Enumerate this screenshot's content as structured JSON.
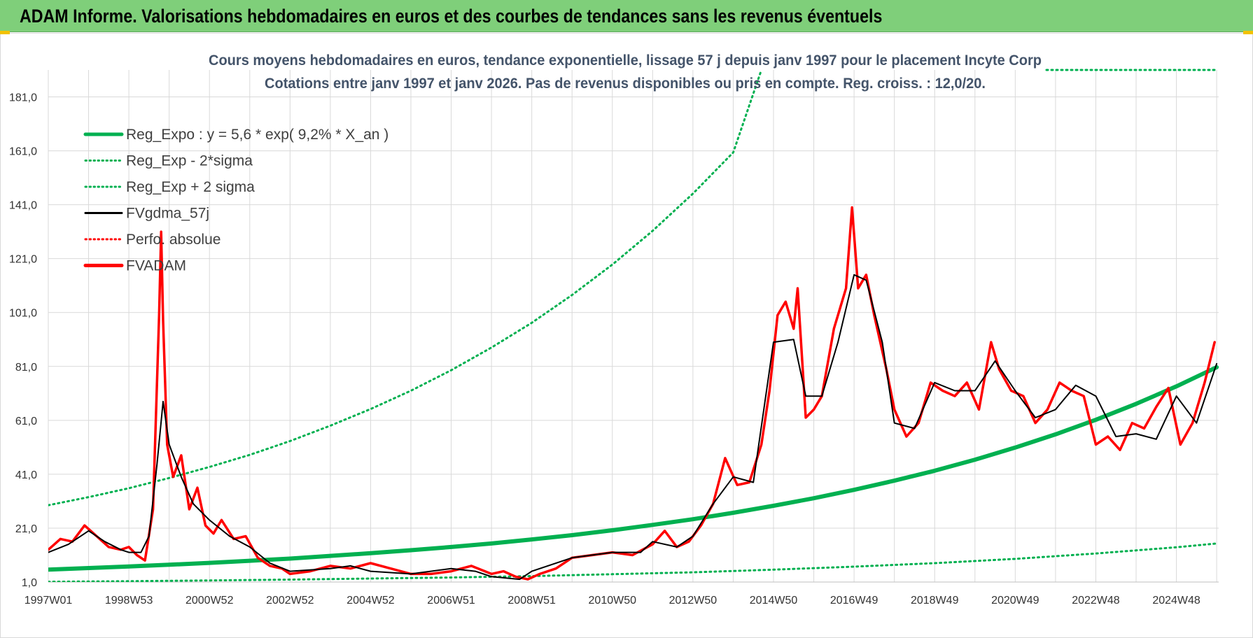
{
  "banner": {
    "title": "ADAM Informe. Valorisations hebdomadaires en euros et des courbes de tendances sans les revenus éventuels"
  },
  "colors": {
    "banner_bg": "#7fcf7a",
    "reg_expo": "#00b050",
    "sigma_lines": "#00b050",
    "fvgdma": "#000000",
    "fvadam": "#ff0000",
    "perfo": "#ff0000",
    "grid": "#d9d9d9"
  },
  "chart_data": {
    "type": "line",
    "title": "Cours moyens hebdomadaires en euros, tendance exponentielle, lissage 57 j depuis janv 1997 pour le placement Incyte Corp",
    "subtitle": "Cotations entre janv 1997 et janv 2026. Pas de revenus disponibles ou pris en compte. Reg. croiss. : 12,0/20.",
    "xlabel": "",
    "ylabel": "",
    "ylim": [
      1,
      191
    ],
    "xlim": [
      1997.0,
      2026.05
    ],
    "y_ticks": [
      "1,0",
      "21,0",
      "41,0",
      "61,0",
      "81,0",
      "101,0",
      "121,0",
      "141,0",
      "161,0",
      "181,0"
    ],
    "x_ticks": [
      {
        "label": "1997W01",
        "x": 1997.0
      },
      {
        "label": "1998W53",
        "x": 1999.0
      },
      {
        "label": "2000W52",
        "x": 2001.0
      },
      {
        "label": "2002W52",
        "x": 2003.0
      },
      {
        "label": "2004W52",
        "x": 2005.0
      },
      {
        "label": "2006W51",
        "x": 2007.0
      },
      {
        "label": "2008W51",
        "x": 2009.0
      },
      {
        "label": "2010W50",
        "x": 2011.0
      },
      {
        "label": "2012W50",
        "x": 2013.0
      },
      {
        "label": "2014W50",
        "x": 2015.0
      },
      {
        "label": "2016W49",
        "x": 2017.0
      },
      {
        "label": "2018W49",
        "x": 2019.0
      },
      {
        "label": "2020W49",
        "x": 2021.0
      },
      {
        "label": "2022W48",
        "x": 2023.0
      },
      {
        "label": "2024W48",
        "x": 2025.0
      }
    ],
    "grid": true,
    "legend_position": "top-left",
    "legend": [
      {
        "label": "Reg_Expo : y = 5,6 * exp( 9,2% *  X_an )",
        "style": "solid-thick",
        "color": "#00b050"
      },
      {
        "label": "Reg_Exp - 2*sigma",
        "style": "dotted",
        "color": "#00b050"
      },
      {
        "label": "Reg_Exp + 2 sigma",
        "style": "dotted",
        "color": "#00b050"
      },
      {
        "label": "FVgdma_57j",
        "style": "solid-thin",
        "color": "#000000"
      },
      {
        "label": "Perfo. absolue",
        "style": "dotted",
        "color": "#ff0000"
      },
      {
        "label": "FVADAM",
        "style": "solid-thick",
        "color": "#ff0000"
      }
    ],
    "series": [
      {
        "name": "Reg_Expo : y = 5,6 * exp( 9,2% *  X_an )",
        "x": [
          1997.0,
          1998.0,
          1999.0,
          2000.0,
          2001.0,
          2002.0,
          2003.0,
          2004.0,
          2005.0,
          2006.0,
          2007.0,
          2008.0,
          2009.0,
          2010.0,
          2011.0,
          2012.0,
          2013.0,
          2014.0,
          2015.0,
          2016.0,
          2017.0,
          2018.0,
          2019.0,
          2020.0,
          2021.0,
          2022.0,
          2023.0,
          2024.0,
          2025.0,
          2026.0
        ],
        "y": [
          5.6,
          6.2,
          6.8,
          7.4,
          8.1,
          8.9,
          9.7,
          10.7,
          11.7,
          12.8,
          14.0,
          15.3,
          16.8,
          18.4,
          20.2,
          22.2,
          24.3,
          26.7,
          29.3,
          32.1,
          35.2,
          38.6,
          42.3,
          46.4,
          50.9,
          55.8,
          61.2,
          67.1,
          73.6,
          80.7
        ]
      },
      {
        "name": "Reg_Exp - 2*sigma",
        "x": [
          1997.0,
          1999.0,
          2001.0,
          2003.0,
          2005.0,
          2007.0,
          2009.0,
          2011.0,
          2013.0,
          2015.0,
          2017.0,
          2019.0,
          2021.0,
          2023.0,
          2025.0,
          2026.0
        ],
        "y": [
          1.1,
          1.3,
          1.6,
          1.9,
          2.3,
          2.7,
          3.2,
          3.9,
          4.6,
          5.6,
          6.7,
          8.0,
          9.6,
          11.6,
          13.9,
          15.3
        ]
      },
      {
        "name": "Reg_Exp + 2 sigma",
        "x": [
          1997.0,
          1998.0,
          1999.0,
          2000.0,
          2001.0,
          2002.0,
          2003.0,
          2004.0,
          2005.0,
          2006.0,
          2007.0,
          2008.0,
          2009.0,
          2010.0,
          2011.0,
          2012.0,
          2013.0,
          2014.0,
          2014.7
        ],
        "y": [
          29.5,
          32.5,
          35.8,
          39.6,
          43.7,
          48.2,
          53.3,
          59.0,
          65.2,
          72.0,
          79.6,
          88.0,
          97.2,
          107.5,
          118.8,
          131.3,
          145.1,
          160.4,
          191.0
        ]
      },
      {
        "name": "FVgdma_57j",
        "x": [
          1997.0,
          1997.5,
          1998.0,
          1998.4,
          1998.8,
          1999.0,
          1999.3,
          1999.5,
          1999.7,
          1999.85,
          2000.0,
          2000.3,
          2000.6,
          2001.0,
          2001.5,
          2002.0,
          2002.5,
          2003.0,
          2004.0,
          2004.5,
          2005.0,
          2006.0,
          2007.0,
          2007.6,
          2008.0,
          2008.7,
          2009.0,
          2010.0,
          2011.0,
          2011.7,
          2012.0,
          2012.6,
          2013.0,
          2013.5,
          2014.0,
          2014.5,
          2015.0,
          2015.5,
          2015.8,
          2016.2,
          2016.6,
          2017.0,
          2017.3,
          2017.7,
          2018.0,
          2018.5,
          2019.0,
          2019.5,
          2020.0,
          2020.5,
          2021.0,
          2021.5,
          2022.0,
          2022.5,
          2023.0,
          2023.5,
          2024.0,
          2024.5,
          2025.0,
          2025.5,
          2026.0
        ],
        "y": [
          12,
          15,
          20,
          16,
          13,
          12,
          12,
          18,
          45,
          68,
          52,
          40,
          30,
          24,
          18,
          14,
          8,
          5,
          6,
          7,
          5,
          4,
          6,
          5,
          3,
          2,
          5,
          10,
          12,
          12,
          16,
          14,
          18,
          30,
          40,
          38,
          90,
          91,
          70,
          70,
          90,
          115,
          113,
          90,
          60,
          58,
          75,
          72,
          72,
          83,
          72,
          62,
          65,
          74,
          70,
          55,
          56,
          54,
          70,
          60,
          82
        ]
      },
      {
        "name": "FVADAM",
        "x": [
          1997.0,
          1997.3,
          1997.6,
          1997.9,
          1998.2,
          1998.5,
          1998.8,
          1999.0,
          1999.2,
          1999.4,
          1999.6,
          1999.75,
          1999.8,
          1999.85,
          1999.95,
          2000.1,
          2000.3,
          2000.5,
          2000.7,
          2000.9,
          2001.1,
          2001.3,
          2001.6,
          2001.9,
          2002.2,
          2002.5,
          2002.8,
          2003.0,
          2003.5,
          2004.0,
          2004.5,
          2005.0,
          2005.5,
          2006.0,
          2006.5,
          2007.0,
          2007.5,
          2008.0,
          2008.3,
          2008.6,
          2008.9,
          2009.2,
          2009.6,
          2010.0,
          2010.5,
          2011.0,
          2011.5,
          2012.0,
          2012.3,
          2012.6,
          2012.9,
          2013.2,
          2013.5,
          2013.8,
          2014.1,
          2014.4,
          2014.7,
          2014.9,
          2015.1,
          2015.3,
          2015.5,
          2015.6,
          2015.8,
          2016.0,
          2016.2,
          2016.5,
          2016.8,
          2016.95,
          2017.1,
          2017.3,
          2017.5,
          2017.8,
          2018.0,
          2018.3,
          2018.6,
          2018.9,
          2019.2,
          2019.5,
          2019.8,
          2020.1,
          2020.4,
          2020.6,
          2020.9,
          2021.2,
          2021.5,
          2021.8,
          2022.1,
          2022.4,
          2022.7,
          2023.0,
          2023.3,
          2023.6,
          2023.9,
          2024.2,
          2024.5,
          2024.8,
          2025.1,
          2025.4,
          2025.7,
          2025.95
        ],
        "y": [
          13,
          17,
          16,
          22,
          18,
          14,
          13,
          14,
          11,
          9,
          28,
          100,
          131,
          98,
          52,
          40,
          48,
          28,
          36,
          22,
          19,
          24,
          17,
          18,
          10,
          7,
          6,
          4,
          5,
          7,
          6,
          8,
          6,
          4,
          4,
          5,
          7,
          4,
          5,
          3,
          2,
          4,
          6,
          10,
          11,
          12,
          11,
          15,
          20,
          14,
          16,
          22,
          30,
          47,
          37,
          38,
          52,
          72,
          100,
          105,
          95,
          110,
          62,
          65,
          70,
          95,
          110,
          140,
          110,
          115,
          100,
          80,
          65,
          55,
          60,
          75,
          72,
          70,
          75,
          65,
          90,
          80,
          72,
          70,
          60,
          65,
          75,
          72,
          70,
          52,
          55,
          50,
          60,
          58,
          66,
          73,
          52,
          60,
          75,
          90
        ]
      }
    ]
  }
}
